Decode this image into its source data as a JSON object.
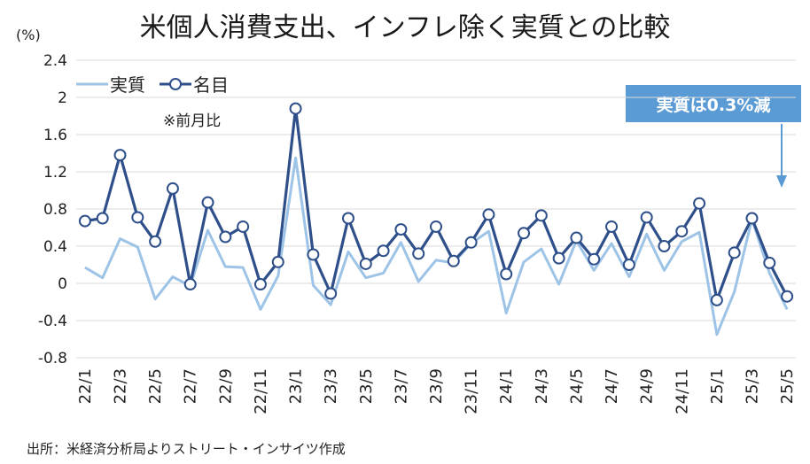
{
  "header": {
    "title": "米個人消費支出、インフレ除く実質との比較",
    "unit": "(%)",
    "note": "※前月比",
    "callout": "実質は0.3%減",
    "source": "出所：米経済分析局よりストリート・インサイツ作成"
  },
  "colors": {
    "real": "#9dc3e6",
    "nominal": "#2e4f8a",
    "callout_bg": "#5b9bd5"
  },
  "chart_data": {
    "type": "line",
    "title": "米個人消費支出、インフレ除く実質との比較",
    "ylabel": "(%)",
    "ylim": [
      -0.8,
      2.4
    ],
    "yticks": [
      "2.4",
      "2",
      "1.6",
      "1.2",
      "0.8",
      "0.4",
      "0",
      "-0.4",
      "-0.8"
    ],
    "ytick_values": [
      2.4,
      2.0,
      1.6,
      1.2,
      0.8,
      0.4,
      0,
      -0.4,
      -0.8
    ],
    "grid": true,
    "legend_position": "top-left",
    "x": [
      "22/1",
      "22/2",
      "22/3",
      "22/4",
      "22/5",
      "22/6",
      "22/7",
      "22/8",
      "22/9",
      "22/10",
      "22/11",
      "22/12",
      "23/1",
      "23/2",
      "23/3",
      "23/4",
      "23/5",
      "23/6",
      "23/7",
      "23/8",
      "23/9",
      "23/10",
      "23/11",
      "23/12",
      "24/1",
      "24/2",
      "24/3",
      "24/4",
      "24/5",
      "24/6",
      "24/7",
      "24/8",
      "24/9",
      "24/10",
      "24/11",
      "24/12",
      "25/1",
      "25/2",
      "25/3",
      "25/4",
      "25/5"
    ],
    "xtick_labels": [
      "22/1",
      "22/3",
      "22/5",
      "22/7",
      "22/9",
      "22/11",
      "23/1",
      "23/3",
      "23/5",
      "23/7",
      "23/9",
      "23/11",
      "24/1",
      "24/3",
      "24/5",
      "24/7",
      "24/9",
      "24/11",
      "25/1",
      "25/3",
      "25/5"
    ],
    "series": [
      {
        "name": "実質",
        "marker": false,
        "values": [
          0.17,
          0.06,
          0.48,
          0.39,
          -0.17,
          0.07,
          -0.03,
          0.57,
          0.18,
          0.17,
          -0.28,
          0.08,
          1.35,
          -0.02,
          -0.23,
          0.34,
          0.06,
          0.11,
          0.44,
          0.02,
          0.25,
          0.22,
          0.43,
          0.56,
          -0.32,
          0.23,
          0.37,
          -0.01,
          0.46,
          0.14,
          0.43,
          0.07,
          0.53,
          0.14,
          0.45,
          0.55,
          -0.55,
          -0.09,
          0.69,
          0.11,
          -0.28
        ]
      },
      {
        "name": "名目",
        "marker": true,
        "values": [
          0.67,
          0.7,
          1.38,
          0.71,
          0.45,
          1.02,
          -0.01,
          0.87,
          0.5,
          0.61,
          -0.01,
          0.23,
          1.88,
          0.31,
          -0.11,
          0.7,
          0.21,
          0.35,
          0.58,
          0.32,
          0.61,
          0.24,
          0.44,
          0.74,
          0.1,
          0.54,
          0.73,
          0.27,
          0.49,
          0.26,
          0.61,
          0.2,
          0.71,
          0.4,
          0.56,
          0.86,
          -0.18,
          0.33,
          0.7,
          0.22,
          -0.14
        ]
      }
    ]
  }
}
